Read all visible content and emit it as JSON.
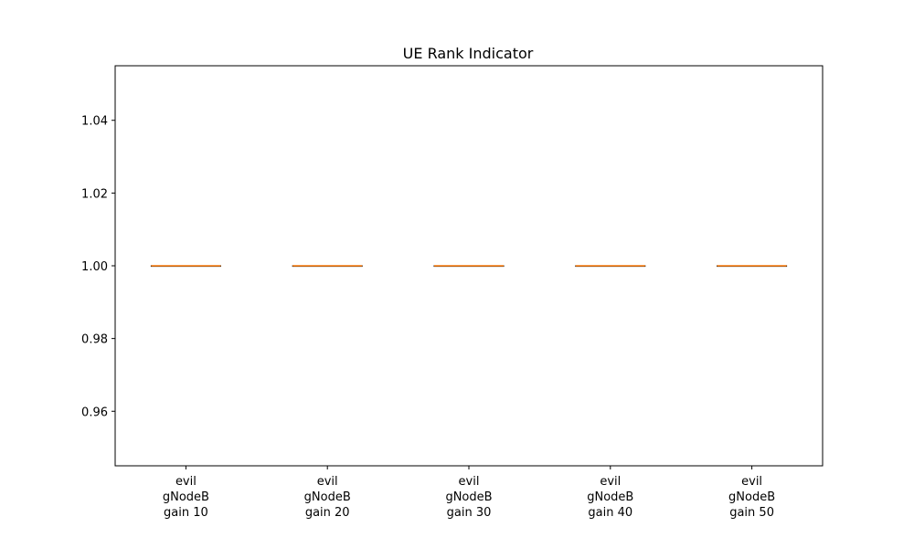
{
  "chart_data": {
    "type": "box",
    "title": "UE Rank Indicator",
    "xlabel": "",
    "ylabel": "",
    "categories": [
      [
        "evil",
        "gNodeB",
        "gain 10"
      ],
      [
        "evil",
        "gNodeB",
        "gain 20"
      ],
      [
        "evil",
        "gNodeB",
        "gain 30"
      ],
      [
        "evil",
        "gNodeB",
        "gain 40"
      ],
      [
        "evil",
        "gNodeB",
        "gain 50"
      ]
    ],
    "boxes": [
      {
        "min": 1.0,
        "q1": 1.0,
        "median": 1.0,
        "q3": 1.0,
        "max": 1.0
      },
      {
        "min": 1.0,
        "q1": 1.0,
        "median": 1.0,
        "q3": 1.0,
        "max": 1.0
      },
      {
        "min": 1.0,
        "q1": 1.0,
        "median": 1.0,
        "q3": 1.0,
        "max": 1.0
      },
      {
        "min": 1.0,
        "q1": 1.0,
        "median": 1.0,
        "q3": 1.0,
        "max": 1.0
      },
      {
        "min": 1.0,
        "q1": 1.0,
        "median": 1.0,
        "q3": 1.0,
        "max": 1.0
      }
    ],
    "ylim": [
      0.945,
      1.055
    ],
    "yticks": [
      0.96,
      0.98,
      1.0,
      1.02,
      1.04
    ],
    "ytick_labels": [
      "0.96",
      "0.98",
      "1.00",
      "1.02",
      "1.04"
    ],
    "grid": false,
    "colors": {
      "median": "#ff7f0e",
      "box": "#000000",
      "axes": "#000000"
    }
  }
}
